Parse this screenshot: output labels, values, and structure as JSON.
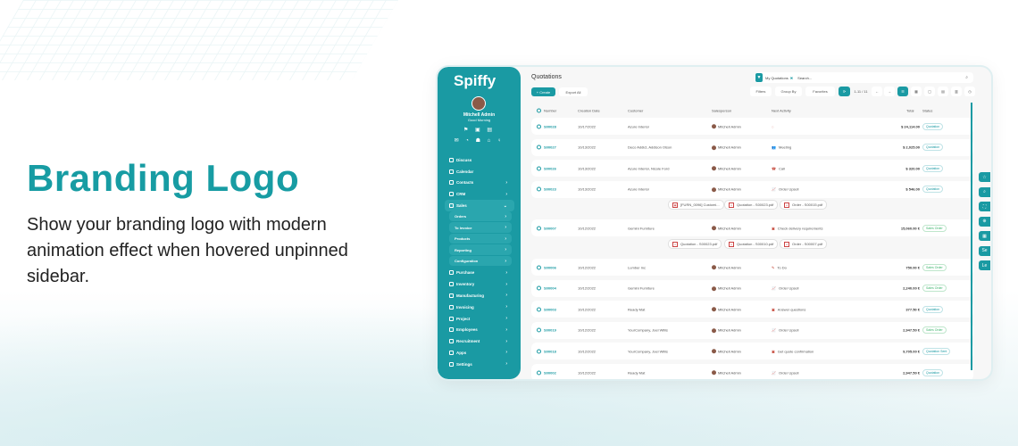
{
  "hero": {
    "title": "Branding Logo",
    "description": "Show your branding logo with modern animation effect when hovered unpinned sidebar."
  },
  "sidebar": {
    "logo": "Spiffy",
    "user": "Mitchell Admin",
    "greeting": "Good Morning",
    "items": [
      {
        "label": "Discuss"
      },
      {
        "label": "Calendar"
      },
      {
        "label": "Contacts",
        "chevron": true
      },
      {
        "label": "CRM",
        "chevron": true
      },
      {
        "label": "Sales",
        "chevron": true,
        "active": true
      }
    ],
    "subitems": [
      {
        "label": "Orders"
      },
      {
        "label": "To Invoice"
      },
      {
        "label": "Products"
      },
      {
        "label": "Reporting"
      },
      {
        "label": "Configuration"
      }
    ],
    "items2": [
      {
        "label": "Purchase"
      },
      {
        "label": "Inventory"
      },
      {
        "label": "Manufacturing"
      },
      {
        "label": "Invoicing"
      },
      {
        "label": "Project"
      },
      {
        "label": "Employees"
      },
      {
        "label": "Recruitment"
      },
      {
        "label": "Apps"
      },
      {
        "label": "Settings"
      }
    ]
  },
  "main": {
    "title": "Quotations",
    "create": "+ Create",
    "export": "Export All",
    "search": {
      "facet": "My Quotations",
      "placeholder": "Search..."
    },
    "toolbar": {
      "filters": "Filters",
      "group_by": "Group By",
      "favorites": "Favorites",
      "pager": "1-11 / 11"
    },
    "columns": [
      "Number",
      "Creation Date",
      "Customer",
      "Salesperson",
      "Next Activity",
      "Total",
      "Status"
    ],
    "rows": [
      {
        "number": "S00028",
        "date": "10/17/2022",
        "customer": "Azure Interior",
        "salesperson": "Mitchell Admin",
        "activity": "",
        "total": "$ 24,114.00",
        "status": "Quotation"
      },
      {
        "number": "S00027",
        "date": "10/13/2022",
        "customer": "Deco Addict, Addison Olson",
        "salesperson": "Mitchell Admin",
        "activity": "Meeting",
        "total": "$ 2,025.00",
        "status": "Quotation"
      },
      {
        "number": "S00026",
        "date": "10/13/2022",
        "customer": "Azure Interior, Nicole Ford",
        "salesperson": "Mitchell Admin",
        "activity": "Call",
        "total": "$ 320.00",
        "status": "Quotation"
      },
      {
        "number": "S00023",
        "date": "10/13/2022",
        "customer": "Azure Interior",
        "salesperson": "Mitchell Admin",
        "activity": "Order Upsell",
        "total": "$ 546.00",
        "status": "Quotation",
        "attachments": [
          "[FURN_0096] Customi...",
          "Quotation - S00023.pdf",
          "Order - S00015.pdf"
        ]
      },
      {
        "number": "S00007",
        "date": "10/12/2022",
        "customer": "Gemini Furniture",
        "salesperson": "Mitchell Admin",
        "activity": "Check delivery requirements",
        "total": "15,060.00 €",
        "status": "Sales Order",
        "attachments": [
          "Quotation - S00023.pdf",
          "Quotation - S00010.pdf",
          "Order - S00007.pdf"
        ]
      },
      {
        "number": "S00006",
        "date": "10/12/2022",
        "customer": "Lumber Inc",
        "salesperson": "Mitchell Admin",
        "activity": "To Do",
        "total": "750.00 €",
        "status": "Sales Order"
      },
      {
        "number": "S00004",
        "date": "10/12/2022",
        "customer": "Gemini Furniture",
        "salesperson": "Mitchell Admin",
        "activity": "Order Upsell",
        "total": "2,240.00 €",
        "status": "Sales Order"
      },
      {
        "number": "S00003",
        "date": "10/12/2022",
        "customer": "Ready Mat",
        "salesperson": "Mitchell Admin",
        "activity": "Answer questions",
        "total": "377.50 €",
        "status": "Quotation"
      },
      {
        "number": "S00019",
        "date": "10/12/2022",
        "customer": "YourCompany, Joel Willis",
        "salesperson": "Mitchell Admin",
        "activity": "Order Upsell",
        "total": "2,947.50 €",
        "status": "Sales Order"
      },
      {
        "number": "S00018",
        "date": "10/12/2022",
        "customer": "YourCompany, Joel Willis",
        "salesperson": "Mitchell Admin",
        "activity": "Get quote confirmation",
        "total": "9,705.00 €",
        "status": "Quotation Sent"
      },
      {
        "number": "S00002",
        "date": "10/12/2022",
        "customer": "Ready Mat",
        "salesperson": "Mitchell Admin",
        "activity": "Order Upsell",
        "total": "2,947.50 €",
        "status": "Quotation"
      }
    ]
  },
  "right_tabs": [
    "☆",
    "⌕",
    "⛶",
    "⊕",
    "▦",
    "Se",
    "Le"
  ],
  "colors": {
    "brand": "#1a9aa3",
    "quotation": "#1a9aa3",
    "sales_order": "#3bb36b"
  }
}
